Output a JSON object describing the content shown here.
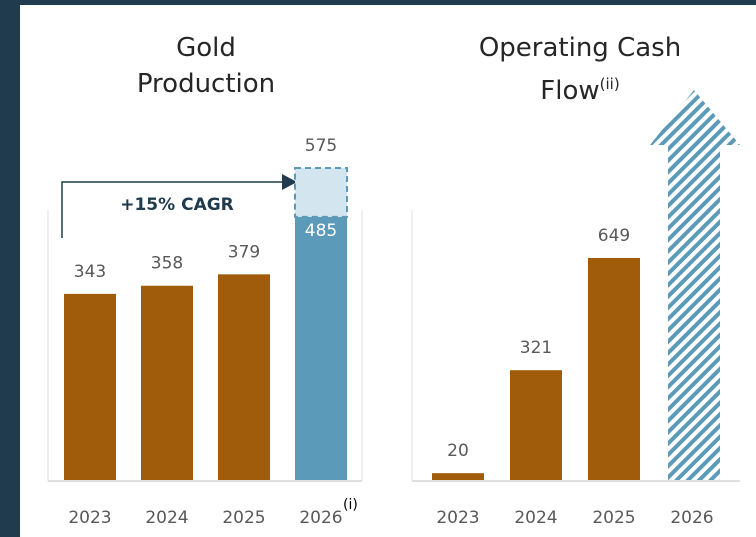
{
  "chart_data": [
    {
      "type": "bar",
      "title": "Gold Production",
      "categories": [
        "2023",
        "2024",
        "2025",
        "2026"
      ],
      "category_notes": [
        null,
        null,
        null,
        "(i)"
      ],
      "series": [
        {
          "colors": [
            "#a05c0a",
            "#a05c0a",
            "#a05c0a",
            "#5b9ab8"
          ],
          "values": [
            343,
            358,
            379,
            485
          ]
        },
        {
          "color": "#d3e6f0",
          "values": [
            null,
            null,
            null,
            90
          ]
        }
      ],
      "totals": [
        null,
        null,
        null,
        575
      ],
      "annotation": "+15% CAGR"
    },
    {
      "type": "bar",
      "title": "Operating Cash Flow",
      "title_note": "(ii)",
      "categories": [
        "2023",
        "2024",
        "2025",
        "2026"
      ],
      "series": [
        {
          "color": "#a05c0a",
          "values": [
            20,
            321,
            649,
            null
          ]
        }
      ]
    }
  ]
}
